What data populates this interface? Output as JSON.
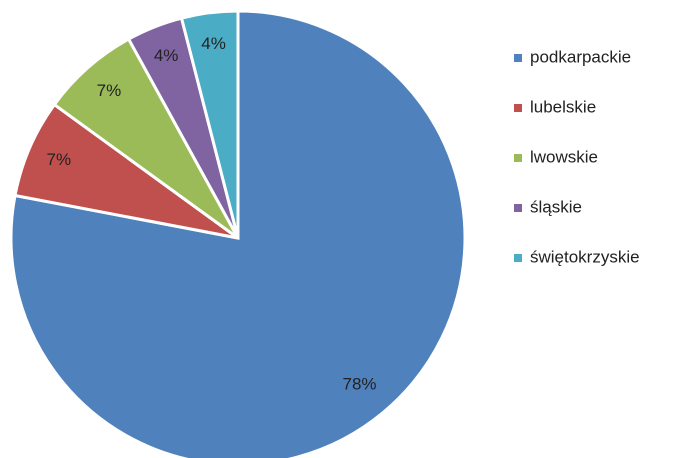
{
  "chart_data": {
    "type": "pie",
    "categories": [
      "podkarpackie",
      "lubelskie",
      "lwowskie",
      "śląskie",
      "świętokrzyskie"
    ],
    "values": [
      78,
      7,
      7,
      4,
      4
    ],
    "value_labels": [
      "78%",
      "7%",
      "7%",
      "4%",
      "4%"
    ],
    "colors": [
      "#4f81bd",
      "#c0504d",
      "#9bbb59",
      "#8064a2",
      "#4bacc6"
    ],
    "legend": "right"
  }
}
